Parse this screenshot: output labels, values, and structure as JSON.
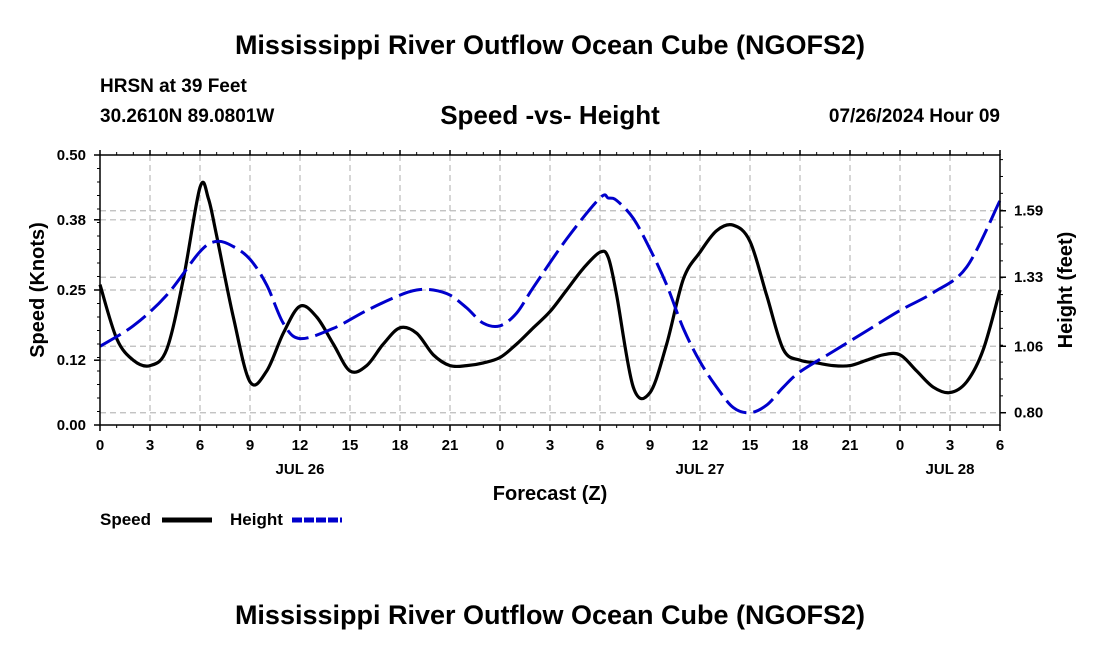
{
  "page": {
    "title": "Mississippi River Outflow Ocean Cube (NGOFS2)",
    "station": "HRSN at 39 Feet",
    "location": "30.2610N  89.0801W",
    "subtitle": "Speed -vs- Height",
    "datetime": "07/26/2024 Hour 09",
    "footer_title": "Mississippi River Outflow Ocean Cube (NGOFS2)"
  },
  "colors": {
    "speed": "#000000",
    "height": "#0000cc",
    "grid": "#bbbbbb"
  },
  "chart_data": {
    "type": "line",
    "title": "Speed -vs- Height",
    "xlabel": "Forecast (Z)",
    "ylabel": "Speed (Knots)",
    "y2label": "Height (feet)",
    "xlim": [
      0,
      54
    ],
    "ylim": [
      0,
      0.5
    ],
    "y2lim": [
      0.752,
      1.808
    ],
    "x_ticks": [
      0,
      3,
      6,
      9,
      12,
      15,
      18,
      21,
      24,
      27,
      30,
      33,
      36,
      39,
      42,
      45,
      48,
      51,
      54
    ],
    "x_tick_labels": [
      "0",
      "3",
      "6",
      "9",
      "12",
      "15",
      "18",
      "21",
      "0",
      "3",
      "6",
      "9",
      "12",
      "15",
      "18",
      "21",
      "0",
      "3",
      "6"
    ],
    "date_labels": [
      {
        "x": 12,
        "label": "JUL 26"
      },
      {
        "x": 36,
        "label": "JUL 27"
      },
      {
        "x": 51,
        "label": "JUL 28"
      }
    ],
    "y_ticks": [
      0.0,
      0.12,
      0.25,
      0.38,
      0.5
    ],
    "y_tick_labels": [
      "0.00",
      "0.12",
      "0.25",
      "0.38",
      "0.50"
    ],
    "y2_ticks": [
      0.8,
      1.06,
      1.33,
      1.59
    ],
    "y2_tick_labels": [
      "0.80",
      "1.06",
      "1.33",
      "1.59"
    ],
    "grid": true,
    "legend": [
      {
        "label": "Speed",
        "style": "solid"
      },
      {
        "label": "Height",
        "style": "dashed"
      }
    ],
    "series": [
      {
        "name": "Speed",
        "axis": "left",
        "x": [
          0,
          1,
          2,
          3,
          4,
          5,
          6,
          6.5,
          7,
          8,
          9,
          10,
          11,
          12,
          13,
          14,
          15,
          16,
          17,
          18,
          19,
          20,
          21,
          22,
          23,
          24,
          25,
          26,
          27,
          28,
          29,
          30,
          30.5,
          31,
          32,
          33,
          34,
          35,
          36,
          37,
          38,
          39,
          40,
          41,
          42,
          43,
          44,
          45,
          46,
          47,
          48,
          49,
          50,
          51,
          52,
          53,
          54
        ],
        "values": [
          0.26,
          0.16,
          0.12,
          0.11,
          0.14,
          0.27,
          0.44,
          0.42,
          0.35,
          0.2,
          0.08,
          0.1,
          0.17,
          0.22,
          0.2,
          0.15,
          0.1,
          0.11,
          0.15,
          0.18,
          0.17,
          0.13,
          0.11,
          0.11,
          0.115,
          0.125,
          0.15,
          0.18,
          0.21,
          0.25,
          0.29,
          0.32,
          0.31,
          0.24,
          0.07,
          0.06,
          0.15,
          0.27,
          0.32,
          0.36,
          0.37,
          0.34,
          0.24,
          0.14,
          0.12,
          0.115,
          0.11,
          0.11,
          0.12,
          0.13,
          0.13,
          0.1,
          0.07,
          0.06,
          0.08,
          0.14,
          0.25
        ]
      },
      {
        "name": "Height",
        "axis": "right",
        "x": [
          0,
          2,
          4,
          6,
          7,
          8,
          9,
          10,
          11,
          12,
          14,
          16,
          18,
          19,
          20,
          21,
          22,
          23,
          24,
          25,
          26,
          28,
          30,
          30.5,
          31,
          32,
          33,
          34,
          35,
          36,
          37,
          38,
          39,
          40,
          41,
          42,
          44,
          46,
          48,
          50,
          52,
          54
        ],
        "values": [
          1.06,
          1.14,
          1.26,
          1.43,
          1.47,
          1.45,
          1.4,
          1.3,
          1.15,
          1.09,
          1.13,
          1.2,
          1.26,
          1.28,
          1.28,
          1.26,
          1.21,
          1.15,
          1.14,
          1.19,
          1.29,
          1.48,
          1.64,
          1.64,
          1.63,
          1.56,
          1.44,
          1.3,
          1.13,
          1.0,
          0.9,
          0.82,
          0.8,
          0.83,
          0.9,
          0.96,
          1.04,
          1.12,
          1.2,
          1.27,
          1.37,
          1.63
        ]
      }
    ]
  }
}
